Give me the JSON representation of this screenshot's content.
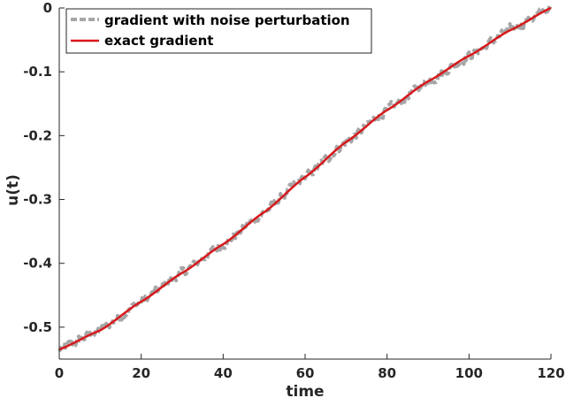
{
  "chart_data": {
    "type": "line",
    "xlabel": "time",
    "ylabel": "u(t)",
    "xlim": [
      0,
      120
    ],
    "ylim": [
      -0.55,
      0
    ],
    "xticks": [
      0,
      20,
      40,
      60,
      80,
      100,
      120
    ],
    "yticks": [
      0,
      -0.1,
      -0.2,
      -0.3,
      -0.4,
      -0.5
    ],
    "ytick_labels": [
      "0",
      "-0.1",
      "-0.2",
      "-0.3",
      "-0.4",
      "-0.5"
    ],
    "grid": false,
    "legend_position": "top-left",
    "series": [
      {
        "name": "gradient with noise perturbation",
        "color": "#a6a6a6",
        "style": "dashed",
        "noise_amplitude": 0.012,
        "x": [
          0,
          10,
          20,
          30,
          40,
          50,
          60,
          70,
          80,
          90,
          100,
          110,
          120
        ],
        "y": [
          -0.535,
          -0.505,
          -0.46,
          -0.415,
          -0.37,
          -0.32,
          -0.265,
          -0.21,
          -0.16,
          -0.115,
          -0.075,
          -0.035,
          0.0
        ]
      },
      {
        "name": "exact gradient",
        "color": "#d7191c",
        "style": "solid",
        "x": [
          0,
          10,
          20,
          30,
          40,
          50,
          60,
          70,
          80,
          90,
          100,
          110,
          120
        ],
        "y": [
          -0.535,
          -0.505,
          -0.46,
          -0.415,
          -0.37,
          -0.32,
          -0.265,
          -0.21,
          -0.16,
          -0.115,
          -0.075,
          -0.035,
          0.0
        ]
      }
    ]
  }
}
